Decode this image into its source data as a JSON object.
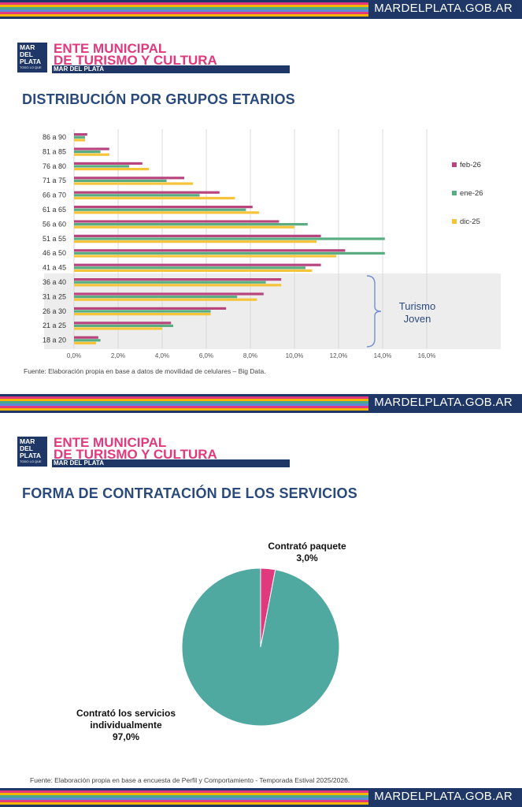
{
  "site": "MARDELPLATA.GOB.AR",
  "brand": {
    "logo_lines": [
      "MAR",
      "DEL",
      "PLATA"
    ],
    "logo_tagline": "TODO LO QUE",
    "ente_line1": "ENTE MUNICIPAL",
    "ente_line2": "DE TURISMO Y CULTURA",
    "ente_sub": "MAR DEL PLATA"
  },
  "colors": {
    "navy": "#1f3767",
    "pink": "#e0397d",
    "teal": "#4fa9a0",
    "feb": "#b8457e",
    "ene": "#5aad80",
    "dic": "#f5c43a"
  },
  "slide1": {
    "title": "DISTRIBUCIÓN POR GRUPOS ETARIOS",
    "source": "Fuente: Elaboración propia en base a datos de movilidad de celulares – Big Data.",
    "annotation": [
      "Turismo",
      "Joven"
    ]
  },
  "slide2": {
    "title": "FORMA DE CONTRATACIÓN DE LOS SERVICIOS",
    "source": "Fuente: Elaboración propia en base a encuesta de Perfil y Comportamiento - Temporada Estival 2025/2026.",
    "label_paquete": [
      "Contrató paquete",
      "3,0%"
    ],
    "label_individual": [
      "Contrató los servicios",
      "individualmente",
      "97,0%"
    ]
  },
  "chart_data": [
    {
      "type": "bar",
      "orientation": "horizontal",
      "title": "DISTRIBUCIÓN POR GRUPOS ETARIOS",
      "categories": [
        "86 a 90",
        "81 a 85",
        "76 a 80",
        "71 a 75",
        "66 a 70",
        "61 a 65",
        "56 a 60",
        "51 a 55",
        "46 a 50",
        "41 a 45",
        "36 a 40",
        "31 a 25",
        "26 a 30",
        "21 a 25",
        "18 a 20"
      ],
      "series": [
        {
          "name": "feb-26",
          "values": [
            0.6,
            1.6,
            3.1,
            5.0,
            6.6,
            8.1,
            9.3,
            11.2,
            12.3,
            11.2,
            9.4,
            8.6,
            6.9,
            4.4,
            1.1
          ]
        },
        {
          "name": "ene-26",
          "values": [
            0.5,
            1.2,
            2.5,
            4.2,
            5.7,
            7.8,
            10.6,
            14.1,
            14.1,
            10.5,
            8.7,
            7.4,
            6.2,
            4.5,
            1.2
          ]
        },
        {
          "name": "dic-25",
          "values": [
            0.5,
            1.6,
            3.4,
            5.4,
            7.3,
            8.4,
            10.0,
            11.0,
            11.9,
            10.8,
            9.4,
            8.3,
            6.2,
            4.0,
            1.0
          ]
        }
      ],
      "xticks": [
        "0,0%",
        "2,0%",
        "4,0%",
        "6,0%",
        "8,0%",
        "10,0%",
        "12,0%",
        "14,0%",
        "16,0%"
      ],
      "xlim": [
        0,
        16
      ],
      "highlight_range": [
        "36 a 40",
        "18 a 20"
      ],
      "legend": "right"
    },
    {
      "type": "pie",
      "title": "FORMA DE CONTRATACIÓN DE LOS SERVICIOS",
      "labels": [
        "Contrató paquete",
        "Contrató los servicios individualmente"
      ],
      "values": [
        3.0,
        97.0
      ]
    }
  ]
}
